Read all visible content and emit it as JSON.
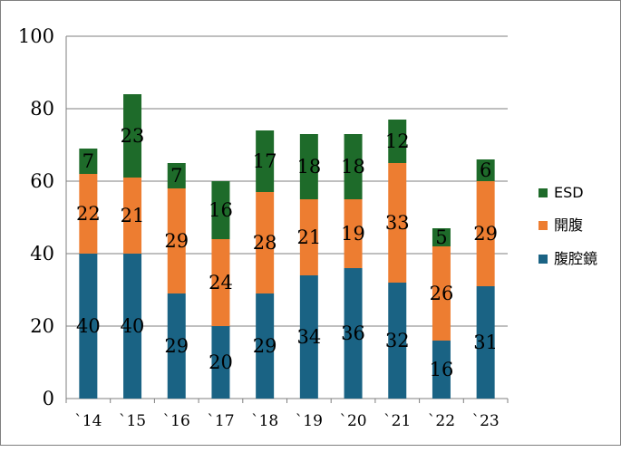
{
  "chart_data": {
    "type": "bar",
    "stacked": true,
    "categories": [
      "`14",
      "`15",
      "`16",
      "`17",
      "`18",
      "`19",
      "`20",
      "`21",
      "`22",
      "`23"
    ],
    "series": [
      {
        "name": "腹腔鏡",
        "color": "#1a6384",
        "values": [
          40,
          40,
          29,
          20,
          29,
          34,
          36,
          32,
          16,
          31
        ]
      },
      {
        "name": "開腹",
        "color": "#ed7d31",
        "values": [
          22,
          21,
          29,
          24,
          28,
          21,
          19,
          33,
          26,
          29
        ]
      },
      {
        "name": "ESD",
        "color": "#1e6b2a",
        "values": [
          7,
          23,
          7,
          16,
          17,
          18,
          18,
          12,
          5,
          6
        ]
      }
    ],
    "legend_order": [
      "ESD",
      "開腹",
      "腹腔鏡"
    ],
    "legend_position": "right",
    "ylim": [
      0,
      100
    ],
    "yticks": [
      "0",
      "20",
      "40",
      "60",
      "80",
      "100"
    ],
    "grid": true,
    "title": "",
    "xlabel": "",
    "ylabel": ""
  }
}
